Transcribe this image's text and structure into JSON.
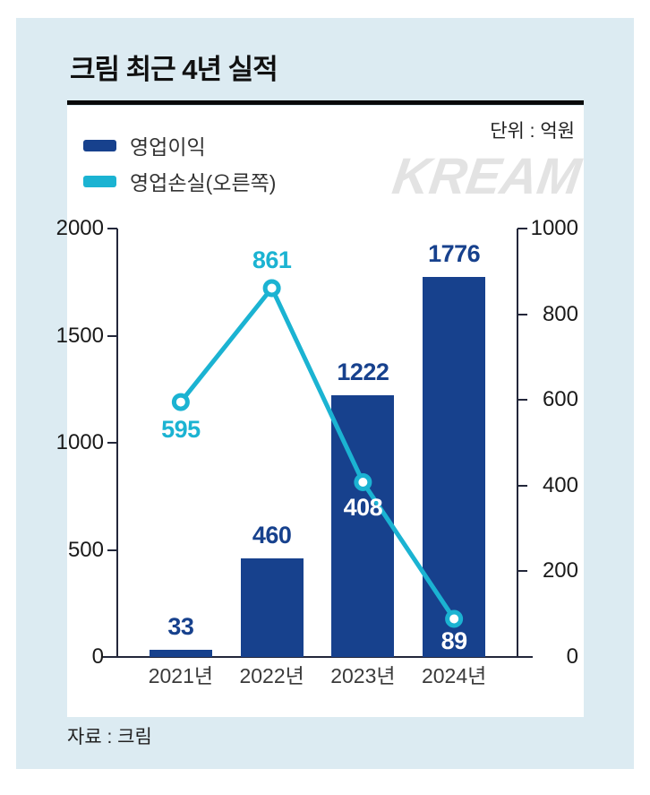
{
  "chart_data": {
    "type": "bar+line",
    "title": "크림 최근 4년 실적",
    "unit_label": "단위 : 억원",
    "watermark": "KREAM",
    "source": "자료 : 크림",
    "categories": [
      "2021년",
      "2022년",
      "2023년",
      "2024년"
    ],
    "series": [
      {
        "name": "영업이익",
        "kind": "bar",
        "axis": "left",
        "color": "#17418d",
        "label_color": "#17418d",
        "values": [
          33,
          460,
          1222,
          1776
        ]
      },
      {
        "name": "영업손실(오른쪽)",
        "kind": "line",
        "axis": "right",
        "color": "#1bb3d2",
        "label_color": "#1bb3d2",
        "inside_label_color": "#ffffff",
        "values": [
          595,
          861,
          408,
          89
        ],
        "label_placements": [
          "below",
          "above",
          "inside-below",
          "inside-bottom"
        ]
      }
    ],
    "left_axis": {
      "min": 0,
      "max": 2000,
      "ticks": [
        0,
        500,
        1000,
        1500,
        2000
      ]
    },
    "right_axis": {
      "min": 0,
      "max": 1000,
      "ticks": [
        0,
        200,
        400,
        600,
        800,
        1000
      ]
    },
    "legend_position": "top-left",
    "grid": false,
    "colors": {
      "card_background": "#dcebf2",
      "panel_background": "#ffffff",
      "axis": "#23273a",
      "tick_text": "#1a1a1a",
      "category_text": "#3a3a3a",
      "watermark": "#e3e3e3",
      "title_text": "#111111"
    }
  }
}
